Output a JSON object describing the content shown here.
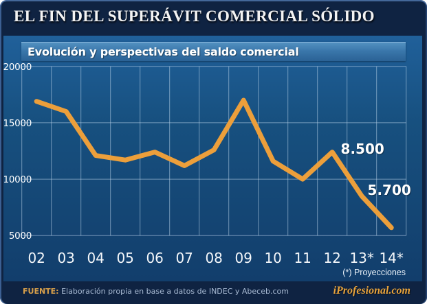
{
  "header": {
    "title": "EL FIN DEL SUPERÁVIT COMERCIAL SÓLIDO"
  },
  "chart": {
    "subtitle": "Evolución y perspectivas del saldo comercial",
    "footnote": "(*) Proyecciones"
  },
  "chart_data": {
    "type": "line",
    "title": "Evolución y perspectivas del saldo comercial",
    "categories": [
      "02",
      "03",
      "04",
      "05",
      "06",
      "07",
      "08",
      "09",
      "10",
      "11",
      "12",
      "13*",
      "14*"
    ],
    "values": [
      16900,
      16000,
      12100,
      11700,
      12400,
      11200,
      12600,
      17000,
      11600,
      10000,
      12400,
      8500,
      5700
    ],
    "y_ticks": [
      20000,
      15000,
      10000,
      5000
    ],
    "ylim": [
      5000,
      20000
    ],
    "grid": true,
    "legend": "none",
    "line_color": "#EC9F3B",
    "gridline_color": "#BED6EB",
    "annotations": [
      {
        "category": "13*",
        "label": "8.500"
      },
      {
        "category": "14*",
        "label": "5.700"
      }
    ],
    "footnote": "(*) Proyecciones"
  },
  "footer": {
    "source_label": "FUENTE:",
    "source_text": "Elaboración propia en base a datos de INDEC y Abeceb.com",
    "brand": "iProfesional.com"
  },
  "colors": {
    "accent_orange": "#EC9F3B",
    "panel_blue": "#17507F",
    "frame_navy": "#0F2342",
    "brand_orange": "#E8A33C"
  }
}
